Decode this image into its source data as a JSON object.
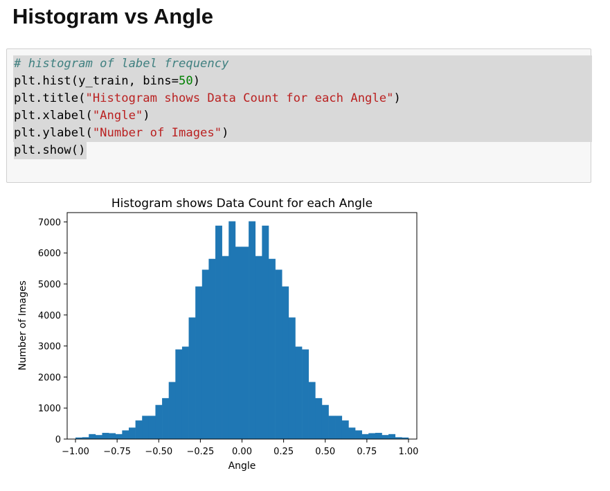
{
  "page": {
    "heading": "Histogram vs Angle"
  },
  "code_cell": {
    "lines": [
      [
        {
          "t": "# histogram of label frequency",
          "c": "tok-comment"
        }
      ],
      [
        {
          "t": "plt.hist(y_train, bins=",
          "c": "tok-name"
        },
        {
          "t": "50",
          "c": "tok-num"
        },
        {
          "t": ")",
          "c": "tok-name"
        }
      ],
      [
        {
          "t": "plt.title(",
          "c": "tok-name"
        },
        {
          "t": "\"Histogram shows Data Count for each Angle\"",
          "c": "tok-str"
        },
        {
          "t": ")",
          "c": "tok-name"
        }
      ],
      [
        {
          "t": "plt.xlabel(",
          "c": "tok-name"
        },
        {
          "t": "\"Angle\"",
          "c": "tok-str"
        },
        {
          "t": ")",
          "c": "tok-name"
        }
      ],
      [
        {
          "t": "plt.ylabel(",
          "c": "tok-name"
        },
        {
          "t": "\"Number of Images\"",
          "c": "tok-str"
        },
        {
          "t": ")",
          "c": "tok-name"
        }
      ],
      [
        {
          "t": "plt.show()",
          "c": "tok-name"
        }
      ]
    ]
  },
  "chart_data": {
    "type": "bar",
    "title": "Histogram shows Data Count for each Angle",
    "xlabel": "Angle",
    "ylabel": "Number of Images",
    "xlim": [
      -1.05,
      1.05
    ],
    "ylim": [
      0,
      7300
    ],
    "xticks": [
      -1.0,
      -0.75,
      -0.5,
      -0.25,
      0.0,
      0.25,
      0.5,
      0.75,
      1.0
    ],
    "xtick_labels": [
      "−1.00",
      "−0.75",
      "−0.50",
      "−0.25",
      "0.00",
      "0.25",
      "0.50",
      "0.75",
      "1.00"
    ],
    "yticks": [
      0,
      1000,
      2000,
      3000,
      4000,
      5000,
      6000,
      7000
    ],
    "ytick_labels": [
      "0",
      "1000",
      "2000",
      "3000",
      "4000",
      "5000",
      "6000",
      "7000"
    ],
    "grid": false,
    "bar_color": "#1f77b4",
    "bin_range": [
      -1.0,
      1.0
    ],
    "bins": 50,
    "values": [
      50,
      60,
      160,
      130,
      200,
      190,
      160,
      280,
      370,
      600,
      750,
      750,
      1100,
      1320,
      1840,
      2890,
      2980,
      3920,
      4920,
      5460,
      5810,
      6880,
      5900,
      7020,
      6200,
      6200,
      7020,
      5900,
      6880,
      5810,
      5460,
      4920,
      3920,
      2980,
      2890,
      1840,
      1320,
      1100,
      750,
      750,
      600,
      370,
      280,
      160,
      190,
      200,
      130,
      160,
      60,
      50
    ]
  }
}
